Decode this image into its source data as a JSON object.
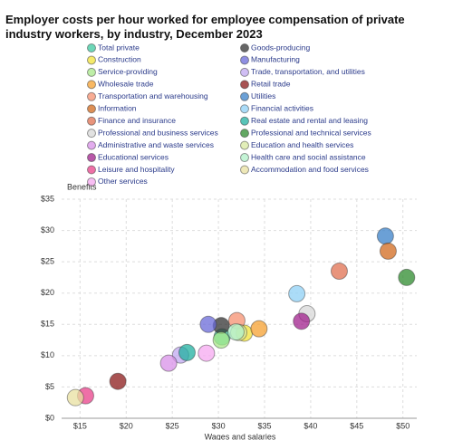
{
  "chart_data": {
    "type": "scatter",
    "title": "Employer costs per hour worked for employee compensation of private industry workers, by industry, December 2023",
    "xlabel": "Wages and salaries",
    "ylabel": "Benefits",
    "xlim": [
      13,
      51.5
    ],
    "ylim": [
      0,
      35
    ],
    "xticks": [
      {
        "value": 15,
        "label": "$15"
      },
      {
        "value": 20,
        "label": "$20"
      },
      {
        "value": 25,
        "label": "$25"
      },
      {
        "value": 30,
        "label": "$30"
      },
      {
        "value": 35,
        "label": "$35"
      },
      {
        "value": 40,
        "label": "$40"
      },
      {
        "value": 45,
        "label": "$45"
      },
      {
        "value": 50,
        "label": "$50"
      }
    ],
    "yticks": [
      {
        "value": 0,
        "label": "$0"
      },
      {
        "value": 5,
        "label": "$5"
      },
      {
        "value": 10,
        "label": "$10"
      },
      {
        "value": 15,
        "label": "$15"
      },
      {
        "value": 20,
        "label": "$20"
      },
      {
        "value": 25,
        "label": "$25"
      },
      {
        "value": 30,
        "label": "$30"
      },
      {
        "value": 35,
        "label": "$35"
      }
    ],
    "grid": true,
    "series": [
      {
        "name": "Total private",
        "color": "#3cc9a0",
        "x": [
          30.4
        ],
        "values": [
          13.0
        ]
      },
      {
        "name": "Goods-producing",
        "color": "#333333",
        "x": [
          30.3
        ],
        "values": [
          14.8
        ]
      },
      {
        "name": "Construction",
        "color": "#f2e33a",
        "x": [
          32.8
        ],
        "values": [
          13.6
        ]
      },
      {
        "name": "Manufacturing",
        "color": "#6a6ad8",
        "x": [
          28.9
        ],
        "values": [
          15.0
        ]
      },
      {
        "name": "Service-providing",
        "color": "#a8e88a",
        "x": [
          30.3
        ],
        "values": [
          12.5
        ]
      },
      {
        "name": "Trade, transportation, and utilities",
        "color": "#c0a8f0",
        "x": [
          25.9
        ],
        "values": [
          10.1
        ]
      },
      {
        "name": "Wholesale trade",
        "color": "#f5a030",
        "x": [
          34.4
        ],
        "values": [
          14.3
        ]
      },
      {
        "name": "Retail trade",
        "color": "#8b1a1a",
        "x": [
          19.1
        ],
        "values": [
          5.9
        ]
      },
      {
        "name": "Transportation and warehousing",
        "color": "#f59070",
        "x": [
          32.0
        ],
        "values": [
          15.6
        ]
      },
      {
        "name": "Utilities",
        "color": "#3a80c8",
        "x": [
          48.1
        ],
        "values": [
          29.1
        ]
      },
      {
        "name": "Information",
        "color": "#d2691e",
        "x": [
          48.4
        ],
        "values": [
          26.7
        ]
      },
      {
        "name": "Financial activities",
        "color": "#8fd0f5",
        "x": [
          38.5
        ],
        "values": [
          19.9
        ]
      },
      {
        "name": "Finance and insurance",
        "color": "#e07050",
        "x": [
          43.1
        ],
        "values": [
          23.5
        ]
      },
      {
        "name": "Real estate and rental and leasing",
        "color": "#20b0a0",
        "x": [
          26.6
        ],
        "values": [
          10.5
        ]
      },
      {
        "name": "Professional and business services",
        "color": "#d8d8d8",
        "x": [
          39.6
        ],
        "values": [
          16.7
        ]
      },
      {
        "name": "Professional and technical services",
        "color": "#2e8b2e",
        "x": [
          50.4
        ],
        "values": [
          22.5
        ]
      },
      {
        "name": "Administrative and waste services",
        "color": "#d890e8",
        "x": [
          24.6
        ],
        "values": [
          8.8
        ]
      },
      {
        "name": "Education and health services",
        "color": "#d8e8a0",
        "x": [
          32.2
        ],
        "values": [
          13.7
        ]
      },
      {
        "name": "Educational services",
        "color": "#a0208c",
        "x": [
          39.0
        ],
        "values": [
          15.5
        ]
      },
      {
        "name": "Health care and social assistance",
        "color": "#b0f0c8",
        "x": [
          31.9
        ],
        "values": [
          13.8
        ]
      },
      {
        "name": "Leisure and hospitality",
        "color": "#e8408a",
        "x": [
          15.6
        ],
        "values": [
          3.6
        ]
      },
      {
        "name": "Accommodation and food services",
        "color": "#e8e0a0",
        "x": [
          14.5
        ],
        "values": [
          3.3
        ]
      },
      {
        "name": "Other services",
        "color": "#f5a8f0",
        "x": [
          28.7
        ],
        "values": [
          10.4
        ]
      }
    ]
  }
}
